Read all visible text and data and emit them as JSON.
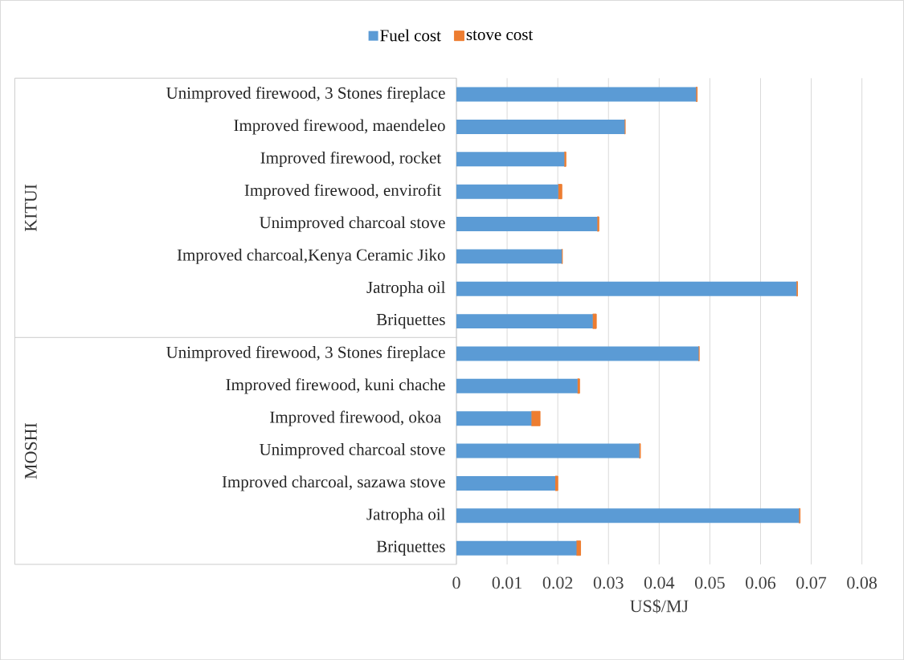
{
  "chart_data": {
    "type": "bar",
    "orientation": "horizontal",
    "stacked": true,
    "xlabel": "US$/MJ",
    "categories": [
      "Unimproved firewood, 3 Stones fireplace",
      "Improved firewood, maendeleo",
      "Improved firewood, rocket ",
      "Improved firewood, envirofit ",
      "Unimproved charcoal stove",
      "Improved charcoal,Kenya Ceramic Jiko",
      "Jatropha oil",
      "Briquettes",
      "Unimproved firewood, 3 Stones fireplace",
      "Improved firewood, kuni chache",
      "Improved firewood, okoa ",
      "Unimproved charcoal stove",
      "Improved charcoal, sazawa stove",
      "Jatropha oil",
      "Briquettes"
    ],
    "series": [
      {
        "name": "Fuel cost",
        "color": "#5b9bd5",
        "values": [
          0.0473,
          0.0332,
          0.0213,
          0.0201,
          0.0278,
          0.0208,
          0.0671,
          0.0269,
          0.0478,
          0.0239,
          0.0148,
          0.0361,
          0.0195,
          0.0676,
          0.0237
        ]
      },
      {
        "name": "stove cost",
        "color": "#ed7d31",
        "values": [
          0.0002,
          0.0001,
          0.0003,
          0.0007,
          0.0003,
          0.0001,
          0.0002,
          0.0007,
          0.0001,
          0.0004,
          0.0017,
          0.0002,
          0.0005,
          0.0002,
          0.0008
        ]
      }
    ],
    "annotations": [
      "KITUI",
      "MOSHI"
    ],
    "xlim": [
      0,
      0.08
    ],
    "xticks": [
      0,
      0.01,
      0.02,
      0.03,
      0.04,
      0.05,
      0.06,
      0.07,
      0.08
    ],
    "grid": "x",
    "legend": "top"
  }
}
